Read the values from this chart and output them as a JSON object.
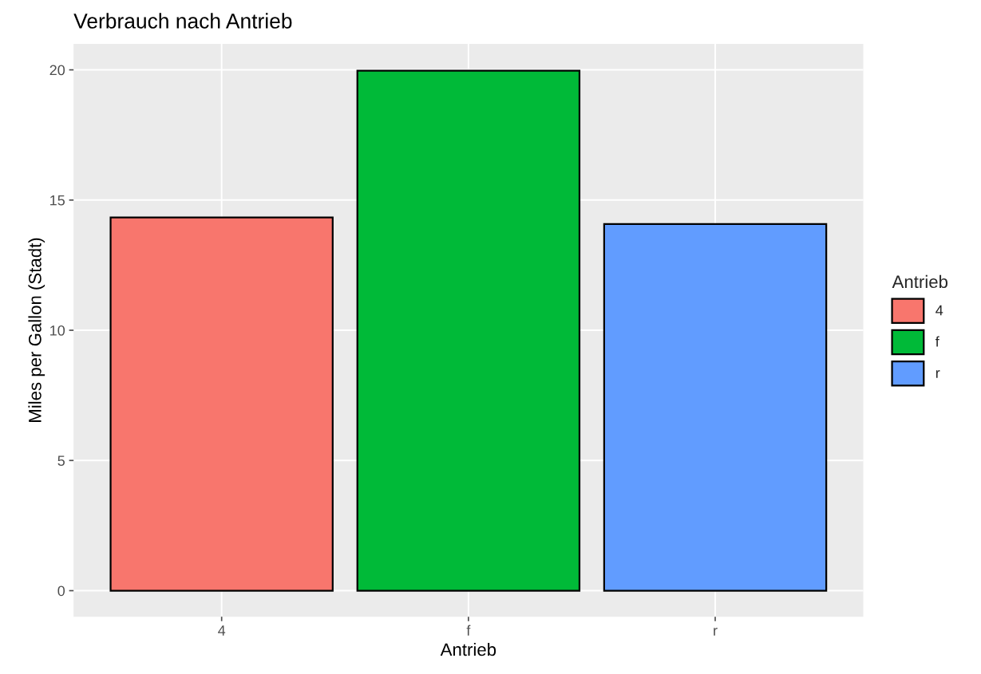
{
  "chart_data": {
    "type": "bar",
    "title": "Verbrauch nach Antrieb",
    "xlabel": "Antrieb",
    "ylabel": "Miles per Gallon (Stadt)",
    "legend_title": "Antrieb",
    "categories": [
      "4",
      "f",
      "r"
    ],
    "series": [
      {
        "name": "4",
        "color": "#f8766d",
        "values": [
          14.33,
          null,
          null
        ]
      },
      {
        "name": "f",
        "color": "#00ba38",
        "values": [
          null,
          19.97,
          null
        ]
      },
      {
        "name": "r",
        "color": "#619cff",
        "values": [
          null,
          null,
          14.08
        ]
      }
    ],
    "ylim": [
      -1,
      21
    ],
    "yticks": [
      0,
      5,
      10,
      15,
      20
    ],
    "grid": true,
    "legend": "right"
  }
}
